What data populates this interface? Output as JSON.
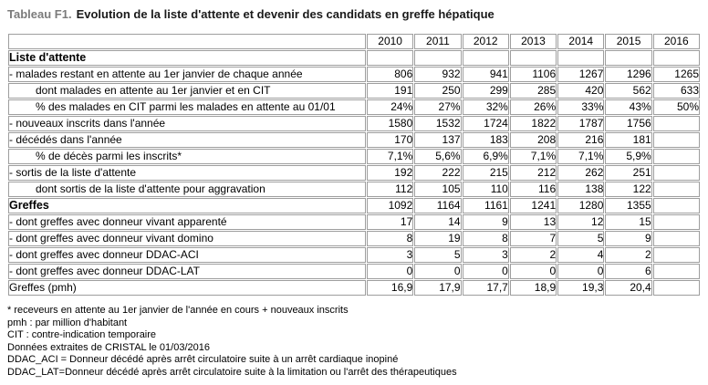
{
  "title": {
    "prefix": "Tableau F1.",
    "text": "Evolution de la liste d'attente et devenir des candidats en greffe hépatique"
  },
  "table": {
    "year_headers": [
      "2010",
      "2011",
      "2012",
      "2013",
      "2014",
      "2015",
      "2016"
    ],
    "rows": [
      {
        "label": "Liste d'attente",
        "kind": "section",
        "values": [
          "",
          "",
          "",
          "",
          "",
          "",
          ""
        ]
      },
      {
        "label": "- malades restant en attente au 1er janvier de chaque année",
        "kind": "normal",
        "values": [
          "806",
          "932",
          "941",
          "1106",
          "1267",
          "1296",
          "1265"
        ]
      },
      {
        "label": "dont malades en attente au 1er janvier et en CIT",
        "kind": "indent",
        "values": [
          "191",
          "250",
          "299",
          "285",
          "420",
          "562",
          "633"
        ]
      },
      {
        "label": "% des malades en CIT parmi les malades en attente au 01/01",
        "kind": "indent",
        "values": [
          "24%",
          "27%",
          "32%",
          "26%",
          "33%",
          "43%",
          "50%"
        ]
      },
      {
        "label": "- nouveaux inscrits dans l'année",
        "kind": "normal",
        "values": [
          "1580",
          "1532",
          "1724",
          "1822",
          "1787",
          "1756",
          ""
        ]
      },
      {
        "label": "- décédés dans l'année",
        "kind": "normal",
        "values": [
          "170",
          "137",
          "183",
          "208",
          "216",
          "181",
          ""
        ]
      },
      {
        "label": "% de décès parmi les inscrits*",
        "kind": "indent",
        "values": [
          "7,1%",
          "5,6%",
          "6,9%",
          "7,1%",
          "7,1%",
          "5,9%",
          ""
        ]
      },
      {
        "label": "- sortis de la liste d'attente",
        "kind": "normal",
        "values": [
          "192",
          "222",
          "215",
          "212",
          "262",
          "251",
          ""
        ]
      },
      {
        "label": "dont sortis de la liste d'attente pour aggravation",
        "kind": "indent",
        "values": [
          "112",
          "105",
          "110",
          "116",
          "138",
          "122",
          ""
        ]
      },
      {
        "label": "Greffes",
        "kind": "section",
        "values": [
          "1092",
          "1164",
          "1161",
          "1241",
          "1280",
          "1355",
          ""
        ]
      },
      {
        "label": "- dont greffes avec donneur vivant apparenté",
        "kind": "normal",
        "values": [
          "17",
          "14",
          "9",
          "13",
          "12",
          "15",
          ""
        ]
      },
      {
        "label": "- dont greffes avec donneur vivant domino",
        "kind": "normal",
        "values": [
          "8",
          "19",
          "8",
          "7",
          "5",
          "9",
          ""
        ]
      },
      {
        "label": "- dont greffes avec donneur DDAC-ACI",
        "kind": "normal",
        "values": [
          "3",
          "5",
          "3",
          "2",
          "4",
          "2",
          ""
        ]
      },
      {
        "label": "- dont greffes avec donneur DDAC-LAT",
        "kind": "normal",
        "values": [
          "0",
          "0",
          "0",
          "0",
          "0",
          "6",
          ""
        ]
      },
      {
        "label": "Greffes (pmh)",
        "kind": "normal",
        "values": [
          "16,9",
          "17,9",
          "17,7",
          "18,9",
          "19,3",
          "20,4",
          ""
        ]
      }
    ]
  },
  "footnotes": [
    "* receveurs en attente au 1er janvier de l'année en cours + nouveaux inscrits",
    "pmh : par million d'habitant",
    "CIT : contre-indication temporaire",
    "Données extraites de CRISTAL le 01/03/2016",
    "DDAC_ACI = Donneur décédé après arrêt circulatoire suite à un arrêt cardiaque inopiné",
    "DDAC_LAT=Donneur décédé après arrêt circulatoire suite à la limitation ou l'arrêt des thérapeutiques"
  ],
  "colors": {
    "title_prefix": "#7b7b7b",
    "title_text": "#1a1a1a",
    "table_border": "#9e9e9e",
    "text": "#000000"
  }
}
